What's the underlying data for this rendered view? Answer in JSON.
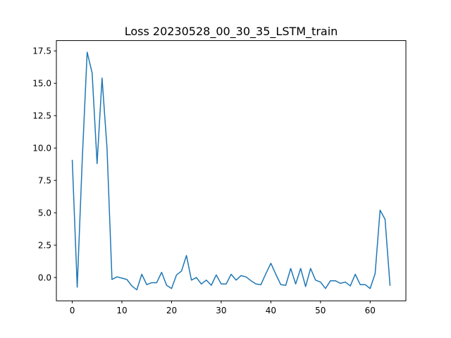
{
  "chart_data": {
    "type": "line",
    "title": "Loss 20230528_00_30_35_LSTM_train",
    "xlabel": "",
    "ylabel": "",
    "xlim": [
      -3.2,
      67.2
    ],
    "ylim": [
      -1.8,
      18.3
    ],
    "x_ticks": [
      0,
      10,
      20,
      30,
      40,
      50,
      60
    ],
    "x_tick_labels": [
      "0",
      "10",
      "20",
      "30",
      "40",
      "50",
      "60"
    ],
    "y_ticks": [
      0.0,
      2.5,
      5.0,
      7.5,
      10.0,
      12.5,
      15.0,
      17.5
    ],
    "y_tick_labels": [
      "0.0",
      "2.5",
      "5.0",
      "7.5",
      "10.0",
      "12.5",
      "15.0",
      "17.5"
    ],
    "grid": false,
    "series": [
      {
        "color": "#1f77b4",
        "x": [
          0,
          1,
          2,
          3,
          4,
          5,
          6,
          7,
          8,
          9,
          10,
          11,
          12,
          13,
          14,
          15,
          16,
          17,
          18,
          19,
          20,
          21,
          22,
          23,
          24,
          25,
          26,
          27,
          28,
          29,
          30,
          31,
          32,
          33,
          34,
          35,
          36,
          37,
          38,
          39,
          40,
          41,
          42,
          43,
          44,
          45,
          46,
          47,
          48,
          49,
          50,
          51,
          52,
          53,
          54,
          55,
          56,
          57,
          58,
          59,
          60,
          61,
          62,
          63,
          64
        ],
        "y": [
          9.05,
          -0.75,
          9.0,
          17.4,
          15.8,
          8.8,
          15.4,
          10.0,
          -0.15,
          0.05,
          -0.05,
          -0.15,
          -0.65,
          -0.95,
          0.25,
          -0.55,
          -0.4,
          -0.4,
          0.4,
          -0.6,
          -0.85,
          0.2,
          0.5,
          1.7,
          -0.2,
          0.0,
          -0.5,
          -0.2,
          -0.6,
          0.2,
          -0.5,
          -0.5,
          0.25,
          -0.2,
          0.15,
          0.05,
          -0.25,
          -0.5,
          -0.55,
          0.3,
          1.1,
          0.25,
          -0.55,
          -0.6,
          0.7,
          -0.5,
          0.7,
          -0.7,
          0.7,
          -0.2,
          -0.35,
          -0.85,
          -0.25,
          -0.25,
          -0.45,
          -0.35,
          -0.65,
          0.25,
          -0.55,
          -0.55,
          -0.85,
          0.3,
          5.2,
          4.5,
          -0.6
        ]
      }
    ]
  }
}
